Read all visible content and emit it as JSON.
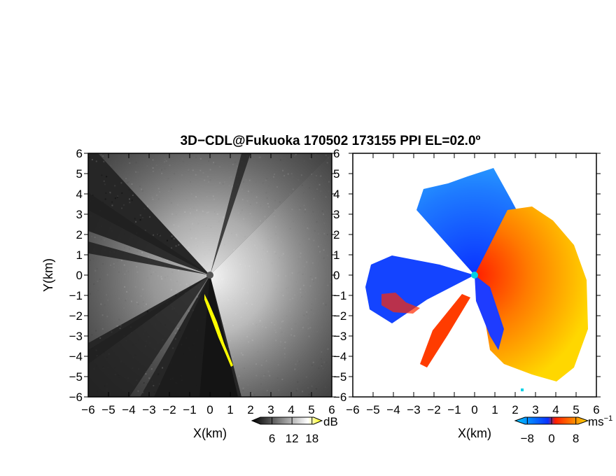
{
  "chart_data": {
    "title": "3D−CDL@Fukuoka 170502 173155 PPI EL=02.0º",
    "type": "heatmap",
    "panels": [
      {
        "name": "reflectivity",
        "xlabel": "X(km)",
        "ylabel": "Y(km)",
        "xlim": [
          -6,
          6
        ],
        "ylim": [
          -6,
          6
        ],
        "xticks": [
          "−6",
          "−5",
          "−4",
          "−3",
          "−2",
          "−1",
          "0",
          "1",
          "2",
          "3",
          "4",
          "5",
          "6"
        ],
        "yticks": [
          "6",
          "5",
          "4",
          "3",
          "2",
          "1",
          "0",
          "−1",
          "−2",
          "−3",
          "−4",
          "−5",
          "−6"
        ],
        "colorbar": {
          "unit": "dB",
          "ticks": [
            "6",
            "12",
            "18"
          ],
          "range": [
            0,
            21
          ],
          "colors": [
            "#000000",
            "#ffffff",
            "#ffff00"
          ]
        }
      },
      {
        "name": "radial-velocity",
        "xlabel": "X(km)",
        "ylabel": "",
        "xlim": [
          -6,
          6
        ],
        "ylim": [
          -6,
          6
        ],
        "xticks": [
          "−6",
          "−5",
          "−4",
          "−3",
          "−2",
          "−1",
          "0",
          "1",
          "2",
          "3",
          "4",
          "5",
          "6"
        ],
        "yticks": [
          "6",
          "5",
          "4",
          "3",
          "2",
          "1",
          "0",
          "−1",
          "−2",
          "−3",
          "−4",
          "−5",
          "−6"
        ],
        "colorbar": {
          "unit": "ms",
          "unit_exp": "−1",
          "ticks": [
            "−8",
            "0",
            "8"
          ],
          "range": [
            -12,
            12
          ],
          "colors": [
            "#00c8ff",
            "#0a32ff",
            "#ff1e00",
            "#ffd700"
          ]
        }
      }
    ],
    "grid": false,
    "colors": {
      "approaching": "#1450ff",
      "receding": "#ff3c00",
      "echo_max": "#ffff00"
    }
  }
}
